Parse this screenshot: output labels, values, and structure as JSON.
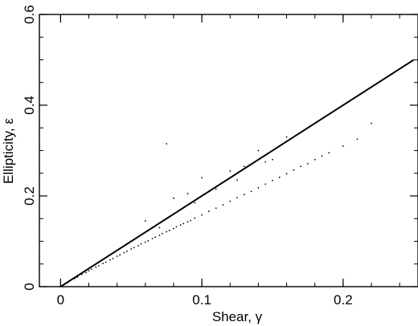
{
  "chart_data": {
    "type": "scatter",
    "title": "",
    "xlabel": "Shear, γ",
    "ylabel": "Ellipticity, ε",
    "xlim": [
      -0.015,
      0.253
    ],
    "ylim": [
      0,
      0.6
    ],
    "x_ticks": [
      0,
      0.1,
      0.2
    ],
    "x_tick_labels": [
      "0",
      "0.1",
      "0.2"
    ],
    "y_ticks": [
      0,
      0.2,
      0.4,
      0.6
    ],
    "y_tick_labels": [
      "0",
      "0.2",
      "0.4",
      "0.6"
    ],
    "grid": false,
    "legend": "none",
    "series": [
      {
        "kind": "line",
        "color": "#000000",
        "x": [
          0,
          0.25
        ],
        "y": [
          0,
          0.5
        ]
      },
      {
        "kind": "points",
        "color": "#000000",
        "x": [
          0.005,
          0.01,
          0.012,
          0.015,
          0.018,
          0.02,
          0.022,
          0.025,
          0.027,
          0.03,
          0.032,
          0.035,
          0.037,
          0.04,
          0.042,
          0.045,
          0.047,
          0.05,
          0.052,
          0.055,
          0.057,
          0.06,
          0.062,
          0.065,
          0.067,
          0.07,
          0.072,
          0.075,
          0.077,
          0.08,
          0.082,
          0.085,
          0.087,
          0.09,
          0.092,
          0.095,
          0.1,
          0.105,
          0.11,
          0.115,
          0.12,
          0.125,
          0.13,
          0.135,
          0.14,
          0.145,
          0.15,
          0.155,
          0.16,
          0.165,
          0.17,
          0.175,
          0.18,
          0.185,
          0.19,
          0.2,
          0.21,
          0.22,
          0.075,
          0.09,
          0.1,
          0.12,
          0.14,
          0.16,
          0.06,
          0.08,
          0.11,
          0.13,
          0.15,
          0.17,
          0.05,
          0.07,
          0.095,
          0.125,
          0.145
        ],
        "y": [
          0.009,
          0.018,
          0.021,
          0.027,
          0.031,
          0.035,
          0.038,
          0.043,
          0.046,
          0.051,
          0.054,
          0.059,
          0.062,
          0.067,
          0.07,
          0.075,
          0.078,
          0.083,
          0.086,
          0.09,
          0.094,
          0.098,
          0.101,
          0.106,
          0.109,
          0.113,
          0.117,
          0.121,
          0.124,
          0.128,
          0.132,
          0.136,
          0.139,
          0.143,
          0.146,
          0.151,
          0.158,
          0.166,
          0.173,
          0.18,
          0.188,
          0.196,
          0.203,
          0.21,
          0.218,
          0.226,
          0.234,
          0.241,
          0.249,
          0.257,
          0.265,
          0.271,
          0.28,
          0.288,
          0.295,
          0.31,
          0.325,
          0.36,
          0.315,
          0.205,
          0.24,
          0.255,
          0.3,
          0.33,
          0.145,
          0.195,
          0.215,
          0.265,
          0.28,
          0.34,
          0.1,
          0.13,
          0.185,
          0.235,
          0.275
        ]
      }
    ]
  }
}
